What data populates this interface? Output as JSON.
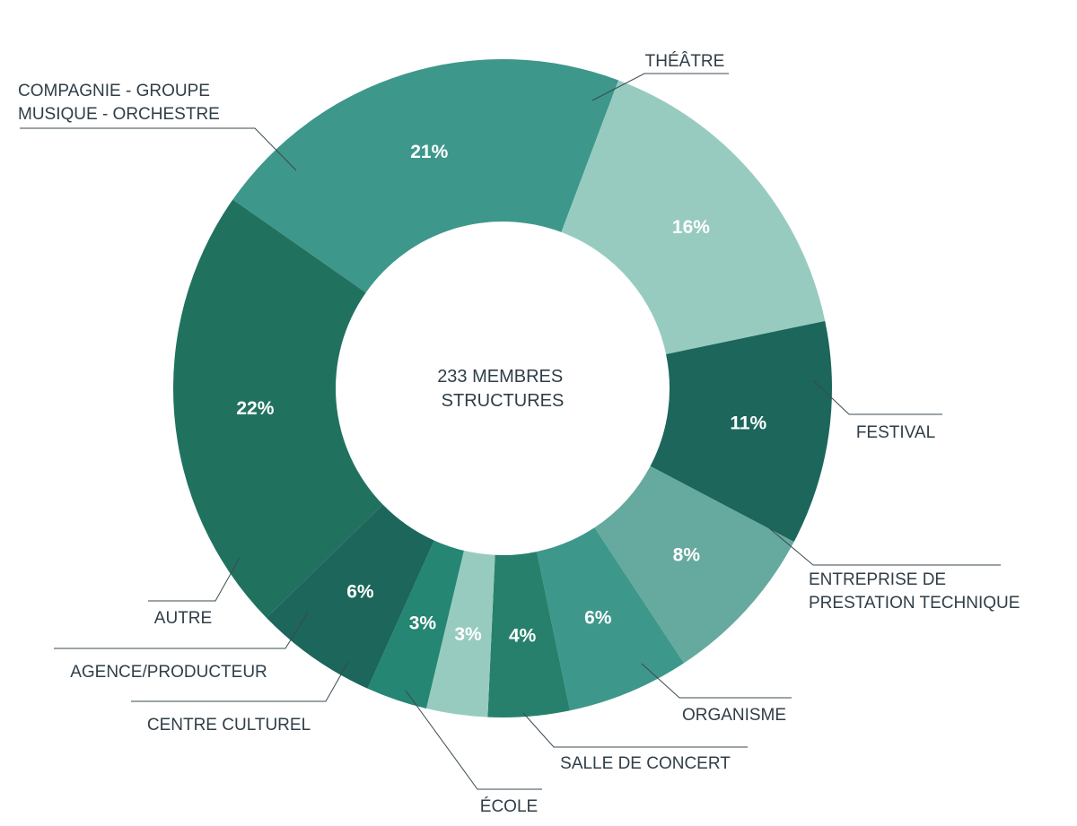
{
  "chart_data": {
    "type": "pie",
    "center_label": [
      "233 MEMBRES",
      "STRUCTURES"
    ],
    "slices": [
      {
        "label": [
          "THÉÂTRE"
        ],
        "value_label": "21%",
        "value": 21,
        "color": "#3e978b"
      },
      {
        "label": [
          "FESTIVAL"
        ],
        "value_label": "16%",
        "value": 16,
        "color": "#98cbc0"
      },
      {
        "label": [
          "ENTREPRISE DE",
          "PRESTATION TECHNIQUE"
        ],
        "value_label": "11%",
        "value": 11,
        "color": "#1c665b"
      },
      {
        "label": [
          "ORGANISME"
        ],
        "value_label": "8%",
        "value": 8,
        "color": "#66a99e"
      },
      {
        "label": [
          "SALLE DE CONCERT"
        ],
        "value_label": "6%",
        "value": 6,
        "color": "#3e978b"
      },
      {
        "label": [
          "ÉCOLE"
        ],
        "value_label": "4%",
        "value": 4,
        "color": "#27806c"
      },
      {
        "label": [
          "CENTRE CULTUREL"
        ],
        "value_label": "3%",
        "value": 3,
        "color": "#98cbc0"
      },
      {
        "label": [
          "AGENCE/PRODUCTEUR"
        ],
        "value_label": "3%",
        "value": 3,
        "color": "#248673"
      },
      {
        "label": [
          "AUTRE"
        ],
        "value_label": "6%",
        "value": 6,
        "color": "#1c665b"
      },
      {
        "label": [
          "COMPAGNIE - GROUPE",
          "MUSIQUE - ORCHESTRE"
        ],
        "value_label": "22%",
        "value": 22,
        "color": "#20725f"
      }
    ]
  }
}
